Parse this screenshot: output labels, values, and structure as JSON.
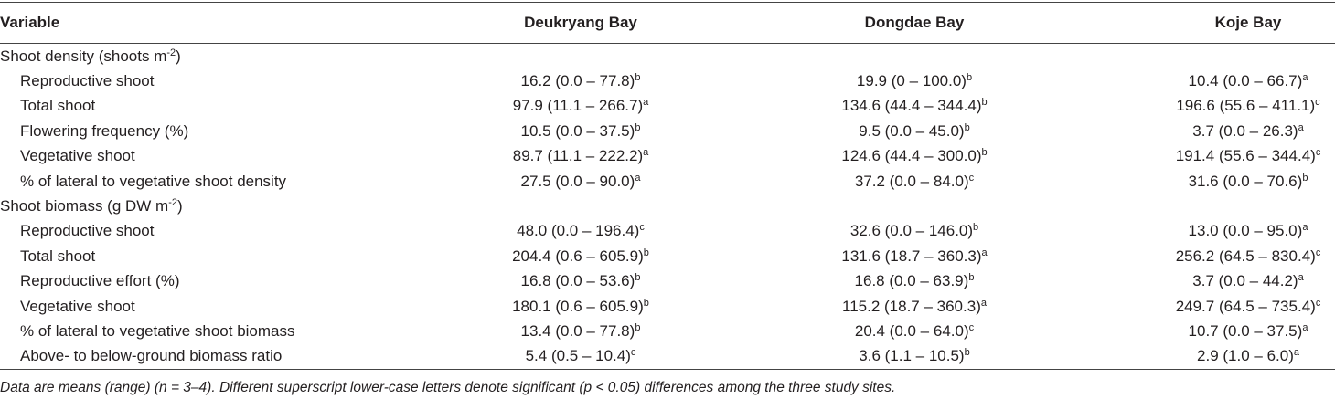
{
  "table": {
    "header": [
      "Variable",
      "Deukryang Bay",
      "Dongdae Bay",
      "Koje Bay"
    ],
    "sections": [
      {
        "title": [
          "Shoot density (shoots m",
          "-2",
          ")"
        ],
        "rows": [
          {
            "label": "Reproductive shoot",
            "cells": [
              [
                "16.2 (0.0 – 77.8)",
                "b"
              ],
              [
                "19.9 (0 – 100.0)",
                "b"
              ],
              [
                "10.4 (0.0 – 66.7)",
                "a"
              ]
            ]
          },
          {
            "label": "Total shoot",
            "cells": [
              [
                "97.9 (11.1 – 266.7)",
                "a"
              ],
              [
                "134.6 (44.4 – 344.4)",
                "b"
              ],
              [
                "196.6 (55.6 – 411.1)",
                "c"
              ]
            ]
          },
          {
            "label": "Flowering frequency (%)",
            "cells": [
              [
                "10.5 (0.0 – 37.5)",
                "b"
              ],
              [
                "9.5 (0.0 – 45.0)",
                "b"
              ],
              [
                "3.7 (0.0 – 26.3)",
                "a"
              ]
            ]
          },
          {
            "label": "Vegetative shoot",
            "cells": [
              [
                "89.7 (11.1 – 222.2)",
                "a"
              ],
              [
                "124.6 (44.4 – 300.0)",
                "b"
              ],
              [
                "191.4 (55.6 – 344.4)",
                "c"
              ]
            ]
          },
          {
            "label": "% of lateral to vegetative shoot density",
            "cells": [
              [
                "27.5 (0.0 – 90.0)",
                "a"
              ],
              [
                "37.2 (0.0 – 84.0)",
                "c"
              ],
              [
                "31.6 (0.0 – 70.6)",
                "b"
              ]
            ]
          }
        ]
      },
      {
        "title": [
          "Shoot biomass (g DW m",
          "-2",
          ")"
        ],
        "rows": [
          {
            "label": "Reproductive shoot",
            "cells": [
              [
                "48.0 (0.0 – 196.4)",
                "c"
              ],
              [
                "32.6 (0.0 – 146.0)",
                "b"
              ],
              [
                "13.0 (0.0 – 95.0)",
                "a"
              ]
            ]
          },
          {
            "label": "Total shoot",
            "cells": [
              [
                "204.4 (0.6 – 605.9)",
                "b"
              ],
              [
                "131.6 (18.7 – 360.3)",
                "a"
              ],
              [
                "256.2 (64.5 – 830.4)",
                "c"
              ]
            ]
          },
          {
            "label": "Reproductive effort (%)",
            "cells": [
              [
                "16.8 (0.0 – 53.6)",
                "b"
              ],
              [
                "16.8 (0.0 – 63.9)",
                "b"
              ],
              [
                "3.7 (0.0 – 44.2)",
                "a"
              ]
            ]
          },
          {
            "label": "Vegetative shoot",
            "cells": [
              [
                "180.1 (0.6 – 605.9)",
                "b"
              ],
              [
                "115.2 (18.7 – 360.3)",
                "a"
              ],
              [
                "249.7 (64.5 – 735.4)",
                "c"
              ]
            ]
          },
          {
            "label": "% of lateral to vegetative shoot biomass",
            "cells": [
              [
                "13.4 (0.0 – 77.8)",
                "b"
              ],
              [
                "20.4 (0.0 – 64.0)",
                "c"
              ],
              [
                "10.7 (0.0 – 37.5)",
                "a"
              ]
            ]
          },
          {
            "label": "Above- to below-ground biomass ratio",
            "cells": [
              [
                "5.4 (0.5 – 10.4)",
                "c"
              ],
              [
                "3.6 (1.1 – 10.5)",
                "b"
              ],
              [
                "2.9 (1.0 – 6.0)",
                "a"
              ]
            ]
          }
        ]
      }
    ],
    "footnote": "Data are means (range) (n = 3–4). Different superscript lower-case letters denote significant (p < 0.05) differences among the three study sites."
  }
}
